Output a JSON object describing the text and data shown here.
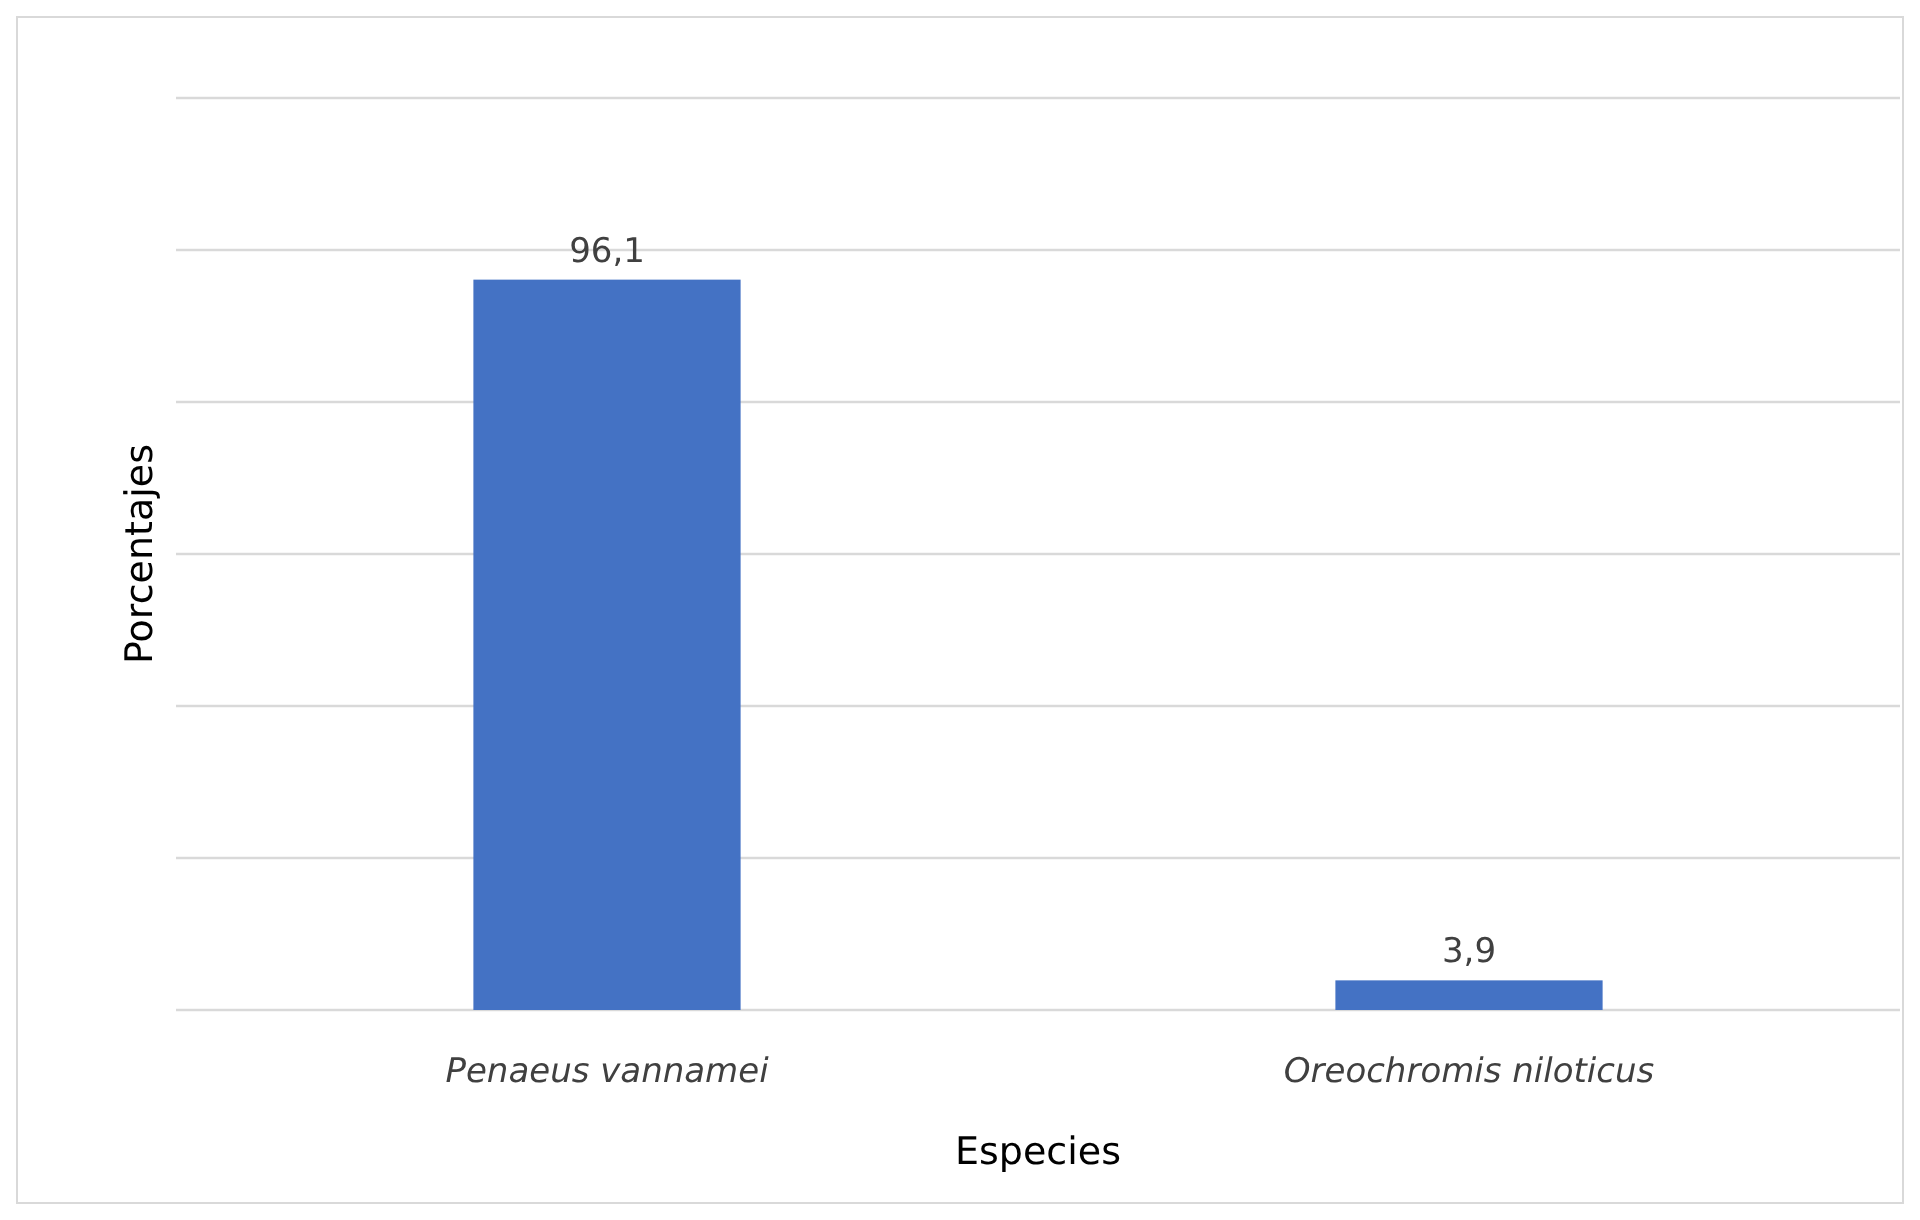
{
  "chart_data": {
    "type": "bar",
    "xlabel": "Especies",
    "ylabel": "Porcentajes",
    "categories": [
      "Penaeus vannamei",
      "Oreochromis niloticus"
    ],
    "values": [
      96.1,
      3.9
    ],
    "color": "#4472c4",
    "value_labels": [
      "96,1",
      "3,9"
    ],
    "ylim": [
      0,
      120
    ],
    "yticks": [
      {
        "value": 0,
        "label": null
      },
      {
        "value": 20,
        "label": null
      },
      {
        "value": 40,
        "label": null
      },
      {
        "value": 60,
        "label": null
      },
      {
        "value": 80,
        "label": null
      },
      {
        "value": 100,
        "label": null
      },
      {
        "value": 120,
        "label": null
      }
    ],
    "grid": "y",
    "tick_labels": "x"
  }
}
